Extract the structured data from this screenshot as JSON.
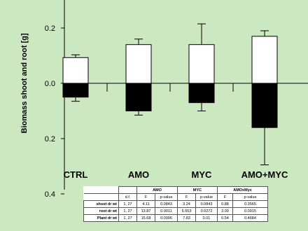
{
  "chart_data": {
    "type": "bar",
    "categories": [
      "CTRL",
      "AMO",
      "MYC",
      "AMO+MYC"
    ],
    "ylabel": "Biomass shoot and root [g]",
    "ytick_labels": [
      "0.2",
      "0.0",
      "0.2",
      "0.4"
    ],
    "ytick_values": [
      0.2,
      0.0,
      -0.2,
      -0.4
    ],
    "ylim": [
      -0.4,
      0.29
    ],
    "series": [
      {
        "values": [
          0.093,
          0.14,
          0.14,
          0.17
        ],
        "errors": [
          0.01,
          0.02,
          0.075,
          0.02
        ],
        "color": "#ffffff"
      },
      {
        "values": [
          -0.05,
          -0.1,
          -0.07,
          -0.16
        ],
        "errors": [
          0.015,
          0.015,
          0.03,
          0.135
        ],
        "color": "#000000"
      }
    ],
    "grid": false,
    "legend": "none"
  },
  "stats_table": {
    "groups": [
      "AMO",
      "MYC",
      "AMOxMyc"
    ],
    "columns": [
      "d.f.",
      "F",
      "p-value",
      "F",
      "p-value",
      "F",
      "p-value"
    ],
    "rows": [
      {
        "label": "shoot dr wt",
        "cells": [
          "1, 27",
          "4.11",
          "0.0843",
          "3.24",
          "0.0843",
          "0.88",
          "0.3565"
        ]
      },
      {
        "label": "root dr wt",
        "cells": [
          "1, 27",
          "13.87",
          "0.0011",
          "5.553",
          "0.0272",
          "3.09",
          "0.0915"
        ]
      },
      {
        "label": "Plant dr wt",
        "cells": [
          "1, 27",
          "15.68",
          "0.0006",
          "7.83",
          "0.01",
          "0.54",
          "0.4684"
        ]
      }
    ]
  }
}
